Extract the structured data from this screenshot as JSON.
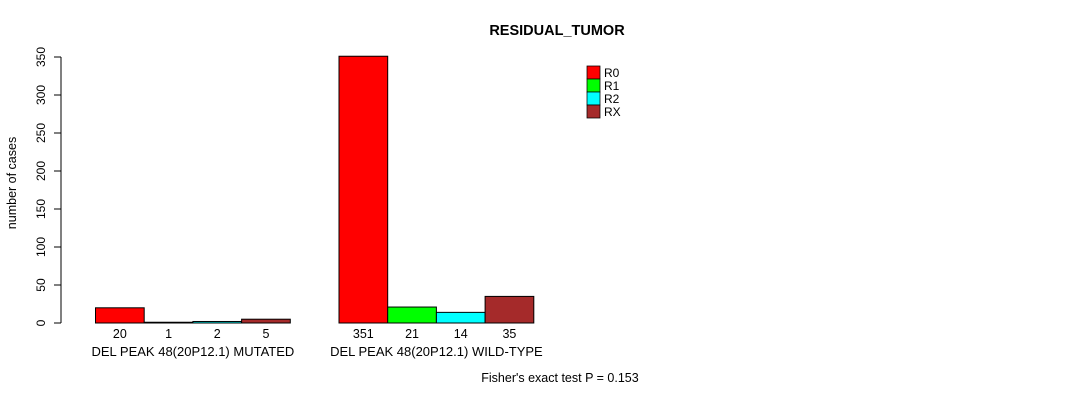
{
  "chart_data": {
    "type": "bar",
    "title": "RESIDUAL_TUMOR",
    "ylabel": "number of cases",
    "xlabel": "",
    "ylim": [
      0,
      350
    ],
    "yticks": [
      0,
      50,
      100,
      150,
      200,
      250,
      300,
      350
    ],
    "categories": [
      "DEL PEAK 48(20P12.1) MUTATED",
      "DEL PEAK 48(20P12.1) WILD-TYPE"
    ],
    "series": [
      {
        "name": "R0",
        "color": "#ff0000",
        "values": [
          20,
          351
        ]
      },
      {
        "name": "R1",
        "color": "#00ff00",
        "values": [
          1,
          21
        ]
      },
      {
        "name": "R2",
        "color": "#00ffff",
        "values": [
          2,
          14
        ]
      },
      {
        "name": "RX",
        "color": "#a52a2a",
        "values": [
          5,
          35
        ]
      }
    ],
    "legend": {
      "position": "top-right",
      "entries": [
        "R0",
        "R1",
        "R2",
        "RX"
      ]
    },
    "value_labels_shown": true,
    "grid": false,
    "background": "#ffffff",
    "bar_border": "#000000",
    "annotation": "Fisher's exact test P = 0.153"
  }
}
